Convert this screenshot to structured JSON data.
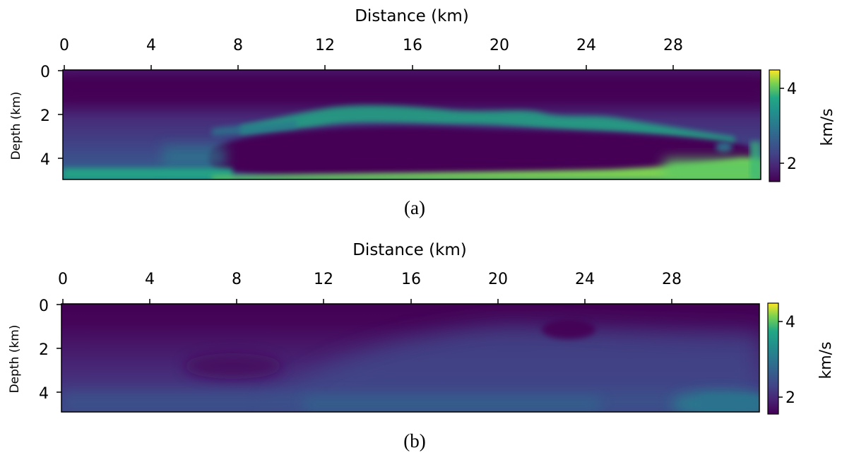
{
  "chart_data": [
    {
      "type": "heatmap",
      "caption": "(a)",
      "xlabel": "Distance (km)",
      "ylabel": "Depth (km)",
      "xlim": [
        0,
        32
      ],
      "ylim": [
        5,
        0
      ],
      "xticks": [
        "0",
        "4",
        "8",
        "12",
        "16",
        "20",
        "24",
        "28"
      ],
      "yticks": [
        "0",
        "2",
        "4"
      ],
      "colorbar": {
        "label": "km/s",
        "ticks": [
          "2",
          "4"
        ],
        "range": [
          1.5,
          4.5
        ],
        "colormap": "viridis"
      },
      "regions": [
        {
          "name": "background",
          "value_kms": 2.0
        },
        {
          "name": "shallow low-velocity layer",
          "depth_km": [
            0.5,
            1.3
          ],
          "value_kms": 1.6
        },
        {
          "name": "high-velocity streak",
          "distance_km": [
            9,
            29
          ],
          "depth_km": [
            1.5,
            2.7
          ],
          "value_kms": 3.2
        },
        {
          "name": "low-velocity body",
          "distance_km": [
            7,
            32
          ],
          "depth_km": [
            2.5,
            4.8
          ],
          "value_kms": 1.5
        },
        {
          "name": "fast bottom layer",
          "depth_km": [
            4.6,
            5.0
          ],
          "value_kms": 3.8
        }
      ]
    },
    {
      "type": "heatmap",
      "caption": "(b)",
      "xlabel": "Distance (km)",
      "ylabel": "Depth (km)",
      "xlim": [
        0,
        32
      ],
      "ylim": [
        5,
        0
      ],
      "xticks": [
        "0",
        "4",
        "8",
        "12",
        "16",
        "20",
        "24",
        "28"
      ],
      "yticks": [
        "0",
        "2",
        "4"
      ],
      "colorbar": {
        "label": "km/s",
        "ticks": [
          "2",
          "4"
        ],
        "range": [
          1.5,
          4.5
        ],
        "colormap": "viridis"
      },
      "regions": [
        {
          "name": "shallow layer",
          "depth_km": [
            0,
            1.0
          ],
          "value_kms": 1.6
        },
        {
          "name": "smooth gradient",
          "depth_km": [
            1.0,
            4.5
          ],
          "value_kms": 2.2
        },
        {
          "name": "faster bottom-right",
          "distance_km": [
            27,
            32
          ],
          "depth_km": [
            4.2,
            5.0
          ],
          "value_kms": 2.9
        }
      ]
    }
  ]
}
